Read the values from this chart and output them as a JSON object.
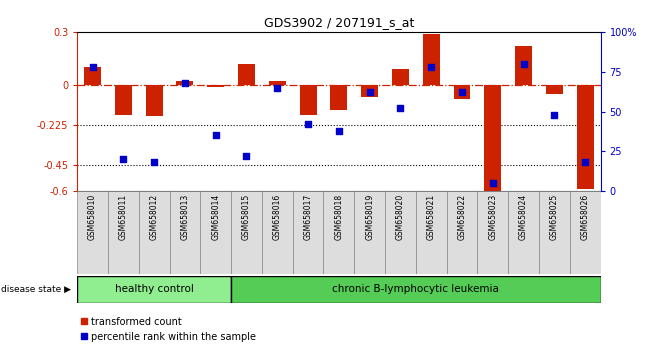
{
  "title": "GDS3902 / 207191_s_at",
  "samples": [
    "GSM658010",
    "GSM658011",
    "GSM658012",
    "GSM658013",
    "GSM658014",
    "GSM658015",
    "GSM658016",
    "GSM658017",
    "GSM658018",
    "GSM658019",
    "GSM658020",
    "GSM658021",
    "GSM658022",
    "GSM658023",
    "GSM658024",
    "GSM658025",
    "GSM658026"
  ],
  "bar_values": [
    0.1,
    -0.17,
    -0.175,
    0.02,
    -0.01,
    0.12,
    0.02,
    -0.17,
    -0.14,
    -0.07,
    0.09,
    0.29,
    -0.08,
    -0.6,
    0.22,
    -0.05,
    -0.59
  ],
  "dot_values": [
    78,
    20,
    18,
    68,
    35,
    22,
    65,
    42,
    38,
    62,
    52,
    78,
    62,
    5,
    80,
    48,
    18
  ],
  "healthy_count": 5,
  "ylim": [
    -0.6,
    0.3
  ],
  "yticks": [
    0.3,
    0.0,
    -0.225,
    -0.45,
    -0.6
  ],
  "ytick_labels": [
    "0.3",
    "0",
    "-0.225",
    "-0.45",
    "-0.6"
  ],
  "right_yticks": [
    100,
    75,
    50,
    25,
    0
  ],
  "right_ytick_labels": [
    "100%",
    "75",
    "50",
    "25",
    "0"
  ],
  "hline_y": 0.0,
  "dotted_lines": [
    -0.225,
    -0.45
  ],
  "bar_color": "#CC2200",
  "dot_color": "#0000CC",
  "healthy_color": "#90EE90",
  "leukemia_color": "#55CC55",
  "label_bg_color": "#CCCCCC",
  "bg_color": "#FFFFFF",
  "bar_width": 0.55,
  "legend_red_label": "transformed count",
  "legend_blue_label": "percentile rank within the sample",
  "disease_label": "disease state",
  "healthy_label": "healthy control",
  "leukemia_label": "chronic B-lymphocytic leukemia"
}
